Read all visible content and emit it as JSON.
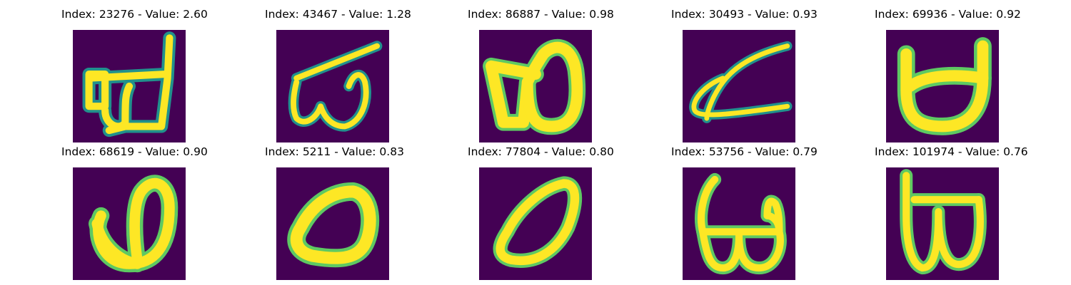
{
  "figure": {
    "background": "#440154",
    "stroke_colors": {
      "core": "#fde725",
      "mid": "#5ec962",
      "edge": "#21918c"
    }
  },
  "panels": [
    {
      "title": "Index: 23276 - Value: 2.60",
      "index": 23276,
      "value": 2.6,
      "glyph": "looped-d-shape"
    },
    {
      "title": "Index: 43467 - Value: 1.28",
      "index": 43467,
      "value": 1.28,
      "glyph": "w-with-long-bar"
    },
    {
      "title": "Index: 86887 - Value: 0.98",
      "index": 86887,
      "value": 0.98,
      "glyph": "thick-double-loop"
    },
    {
      "title": "Index: 30493 - Value: 0.93",
      "index": 30493,
      "value": 0.93,
      "glyph": "slanted-alpha"
    },
    {
      "title": "Index: 69936 - Value: 0.92",
      "index": 69936,
      "value": 0.92,
      "glyph": "bowl-with-bar"
    },
    {
      "title": "Index: 68619 - Value: 0.90",
      "index": 68619,
      "value": 0.9,
      "glyph": "open-loop-w"
    },
    {
      "title": "Index: 5211 - Value: 0.83",
      "index": 5211,
      "value": 0.83,
      "glyph": "thick-oval"
    },
    {
      "title": "Index: 77804 - Value: 0.80",
      "index": 77804,
      "value": 0.8,
      "glyph": "slanted-oval"
    },
    {
      "title": "Index: 53756 - Value: 0.79",
      "index": 53756,
      "value": 0.79,
      "glyph": "double-loop-with-stem"
    },
    {
      "title": "Index: 101974 - Value: 0.76",
      "index": 101974,
      "value": 0.76,
      "glyph": "stem-with-double-loop"
    }
  ]
}
